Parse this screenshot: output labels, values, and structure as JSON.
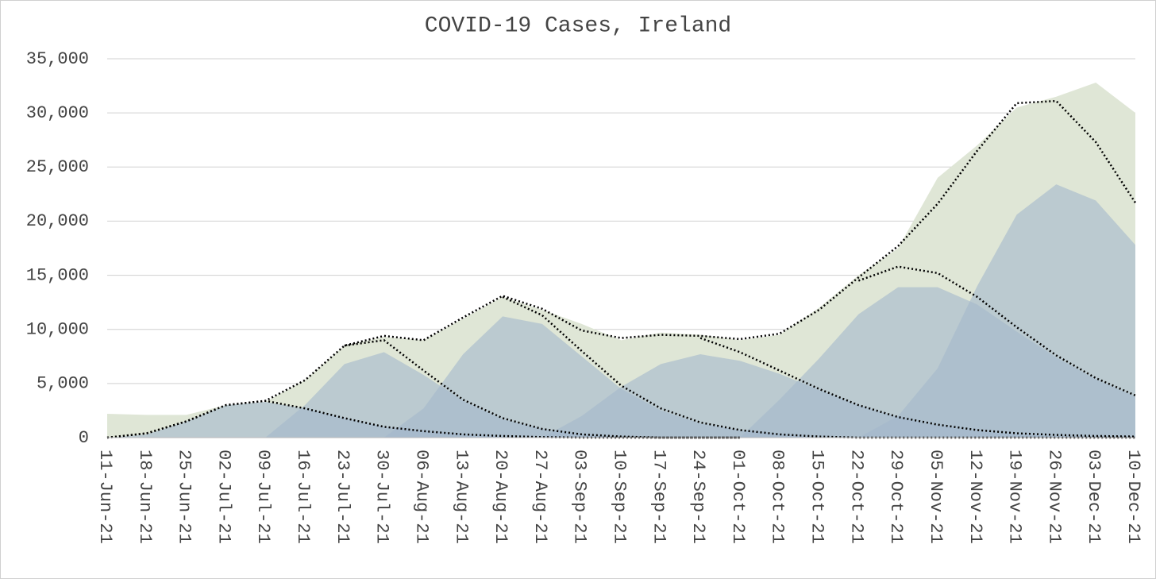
{
  "chart_data": {
    "type": "area",
    "title": "COVID-19 Cases, Ireland",
    "categories": [
      "11-Jun-21",
      "18-Jun-21",
      "25-Jun-21",
      "02-Jul-21",
      "09-Jul-21",
      "16-Jul-21",
      "23-Jul-21",
      "30-Jul-21",
      "06-Aug-21",
      "13-Aug-21",
      "20-Aug-21",
      "27-Aug-21",
      "03-Sep-21",
      "10-Sep-21",
      "17-Sep-21",
      "24-Sep-21",
      "01-Oct-21",
      "08-Oct-21",
      "15-Oct-21",
      "22-Oct-21",
      "29-Oct-21",
      "05-Nov-21",
      "12-Nov-21",
      "19-Nov-21",
      "26-Nov-21",
      "03-Dec-21",
      "10-Dec-21"
    ],
    "ylim": [
      0,
      35000
    ],
    "yticks": [
      0,
      {
        "value": 5000,
        "label": "5,000"
      },
      {
        "value": 10000,
        "label": "10,000"
      },
      {
        "value": 15000,
        "label": "15,000"
      },
      {
        "value": 20000,
        "label": "20,000"
      },
      {
        "value": 25000,
        "label": "25,000"
      },
      {
        "value": 30000,
        "label": "30,000"
      },
      {
        "value": 35000,
        "label": "35,000"
      }
    ],
    "grid": true,
    "series": [
      {
        "style": "area",
        "color": "#dfe6d6",
        "opacity": 1,
        "values": [
          2200,
          2100,
          2100,
          3000,
          3300,
          5300,
          8500,
          9300,
          9000,
          11000,
          13000,
          11800,
          10500,
          9000,
          9700,
          9500,
          9000,
          9500,
          12000,
          15000,
          17500,
          24000,
          27000,
          30500,
          31500,
          32800,
          30000
        ]
      },
      {
        "style": "area",
        "color": "#a3b7cc",
        "opacity": 0.6,
        "values": [
          0,
          300,
          1500,
          3000,
          3300,
          2700,
          1800,
          1000,
          600,
          300,
          100,
          0,
          null,
          null,
          null,
          null,
          null,
          null,
          null,
          null,
          null,
          null,
          null,
          null,
          null,
          null,
          null
        ]
      },
      {
        "style": "area",
        "color": "#a3b7cc",
        "opacity": 0.6,
        "values": [
          null,
          null,
          null,
          null,
          0,
          3000,
          6800,
          7900,
          5800,
          3400,
          1700,
          800,
          300,
          0,
          null,
          null,
          null,
          null,
          null,
          null,
          null,
          null,
          null,
          null,
          null,
          null,
          null
        ]
      },
      {
        "style": "area",
        "color": "#a3b7cc",
        "opacity": 0.6,
        "values": [
          null,
          null,
          null,
          null,
          null,
          null,
          null,
          0,
          2700,
          7700,
          11200,
          10500,
          7500,
          4500,
          2500,
          1300,
          700,
          300,
          0,
          null,
          null,
          null,
          null,
          null,
          null,
          null,
          null
        ]
      },
      {
        "style": "area",
        "color": "#a3b7cc",
        "opacity": 0.6,
        "values": [
          null,
          null,
          null,
          null,
          null,
          null,
          null,
          null,
          null,
          null,
          null,
          0,
          2000,
          4700,
          6800,
          7700,
          7100,
          5900,
          4400,
          3000,
          1900,
          1100,
          600,
          300,
          150,
          80,
          50
        ]
      },
      {
        "style": "area",
        "color": "#a3b7cc",
        "opacity": 0.6,
        "values": [
          null,
          null,
          null,
          null,
          null,
          null,
          null,
          null,
          null,
          null,
          null,
          null,
          null,
          null,
          null,
          null,
          0,
          3500,
          7300,
          11400,
          13900,
          13900,
          12300,
          9800,
          7400,
          5400,
          3800
        ]
      },
      {
        "style": "area",
        "color": "#a3b7cc",
        "opacity": 0.6,
        "values": [
          null,
          null,
          null,
          null,
          null,
          null,
          null,
          null,
          null,
          null,
          null,
          null,
          null,
          null,
          null,
          null,
          null,
          null,
          null,
          0,
          2000,
          6400,
          14000,
          20600,
          23400,
          21900,
          17800
        ]
      },
      {
        "style": "dotted",
        "color": "#000000",
        "values": [
          0,
          400,
          1500,
          3000,
          3400,
          5300,
          8500,
          9400,
          9000,
          11100,
          13100,
          11900,
          9900,
          9200,
          9500,
          9400,
          9100,
          9600,
          11800,
          14800,
          17700,
          21600,
          26500,
          30900,
          31100,
          27300,
          21700
        ]
      },
      {
        "style": "dotted",
        "color": "#000000",
        "values": [
          0,
          400,
          1500,
          3000,
          3400,
          2700,
          1800,
          1000,
          600,
          300,
          150,
          50,
          0,
          0,
          0,
          0,
          0,
          null,
          null,
          null,
          null,
          null,
          null,
          null,
          null,
          null,
          null
        ]
      },
      {
        "style": "dotted",
        "color": "#000000",
        "values": [
          null,
          null,
          null,
          null,
          null,
          null,
          8500,
          9000,
          6200,
          3500,
          1800,
          800,
          300,
          100,
          0,
          0,
          0,
          null,
          null,
          null,
          null,
          null,
          null,
          null,
          null,
          null,
          null
        ]
      },
      {
        "style": "dotted",
        "color": "#000000",
        "values": [
          null,
          null,
          null,
          null,
          null,
          null,
          null,
          null,
          null,
          null,
          13000,
          11300,
          8000,
          4800,
          2700,
          1400,
          700,
          300,
          100,
          0,
          0,
          0,
          0,
          0,
          0,
          0,
          0
        ]
      },
      {
        "style": "dotted",
        "color": "#000000",
        "values": [
          null,
          null,
          null,
          null,
          null,
          null,
          null,
          null,
          null,
          null,
          null,
          null,
          null,
          null,
          null,
          9200,
          7900,
          6200,
          4500,
          3000,
          1900,
          1200,
          700,
          400,
          250,
          150,
          100
        ]
      },
      {
        "style": "dotted",
        "color": "#000000",
        "values": [
          null,
          null,
          null,
          null,
          null,
          null,
          null,
          null,
          null,
          null,
          null,
          null,
          null,
          null,
          null,
          null,
          null,
          null,
          null,
          14500,
          15800,
          15200,
          13000,
          10200,
          7600,
          5500,
          3900
        ]
      }
    ]
  }
}
